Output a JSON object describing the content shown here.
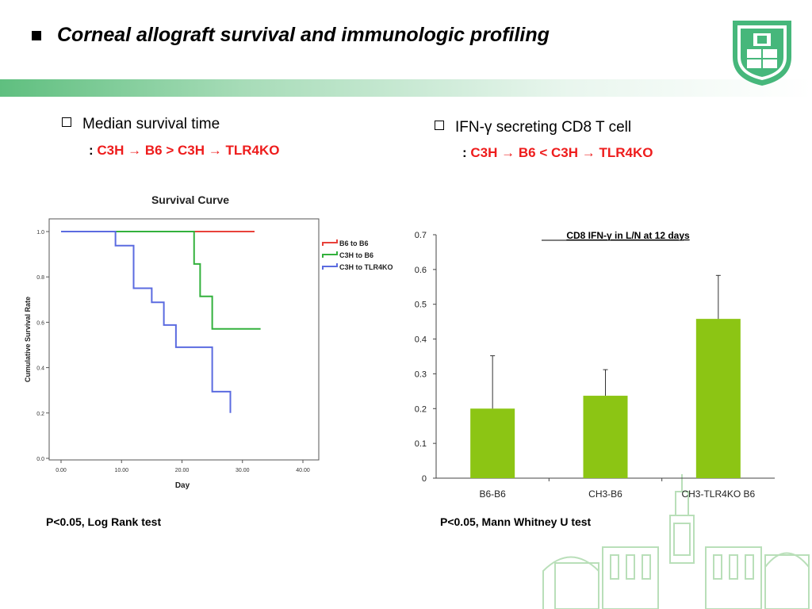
{
  "slide": {
    "title": "Corneal allograft survival and immunologic profiling"
  },
  "left": {
    "heading": "Median survival time",
    "detail_prefix": ":",
    "detail_parts": [
      "C3H",
      "→",
      "B6",
      ">",
      "C3H",
      "→",
      "TLR4KO"
    ],
    "footnote": "P<0.05, Log Rank test"
  },
  "right": {
    "heading": "IFN-γ secreting CD8 T cell",
    "detail_prefix": ":",
    "detail_parts": [
      "C3H",
      "→",
      "B6",
      "<",
      "C3H",
      "→",
      "TLR4KO"
    ],
    "footnote": "P<0.05, Mann Whitney U test"
  },
  "colors": {
    "accent_red": "#ee1c1c",
    "series_red": "#e8413a",
    "series_green": "#33b13d",
    "series_blue": "#5b6be0",
    "bar_green": "#8cc514",
    "logo_green": "#46b77b"
  },
  "icons": [
    "university-logo",
    "building-watermark",
    "checkbox-bullet-icon",
    "square-bullet-icon"
  ],
  "chart_data": [
    {
      "type": "line",
      "subtype": "step",
      "title": "Survival Curve",
      "xlabel": "Day",
      "ylabel": "Cumulative Survival Rate",
      "xlim": [
        0,
        40
      ],
      "ylim": [
        0,
        1.0
      ],
      "x_ticks": [
        "0.00",
        "10.00",
        "20.00",
        "30.00",
        "40.00"
      ],
      "y_ticks": [
        "0.0",
        "0.2",
        "0.4",
        "0.6",
        "0.8",
        "1.0"
      ],
      "legend_position": "top-right",
      "grid": false,
      "series": [
        {
          "name": "B6 to B6",
          "color": "#e8413a",
          "x": [
            9,
            32
          ],
          "y": [
            1.0,
            1.0
          ]
        },
        {
          "name": "C3H to B6",
          "color": "#33b13d",
          "x": [
            9,
            22,
            23,
            25,
            33
          ],
          "y": [
            1.0,
            0.857,
            0.714,
            0.571,
            0.571
          ]
        },
        {
          "name": "C3H to TLR4KO",
          "color": "#5b6be0",
          "x": [
            0,
            9,
            12,
            15,
            17,
            19,
            25,
            28
          ],
          "y": [
            1.0,
            0.938,
            0.75,
            0.688,
            0.588,
            0.49,
            0.294,
            0.2
          ]
        }
      ]
    },
    {
      "type": "bar",
      "title": "CD8 IFN-γ in L/N at 12 days",
      "categories": [
        "B6-B6",
        "CH3-B6",
        "CH3-TLR4KO B6"
      ],
      "values": [
        0.2,
        0.237,
        0.458
      ],
      "errors": [
        0.152,
        0.075,
        0.125
      ],
      "color": "#8cc514",
      "ylim": [
        0,
        0.7
      ],
      "y_ticks": [
        "0",
        "0.1",
        "0.2",
        "0.3",
        "0.4",
        "0.5",
        "0.6",
        "0.7"
      ],
      "grid": false
    }
  ]
}
